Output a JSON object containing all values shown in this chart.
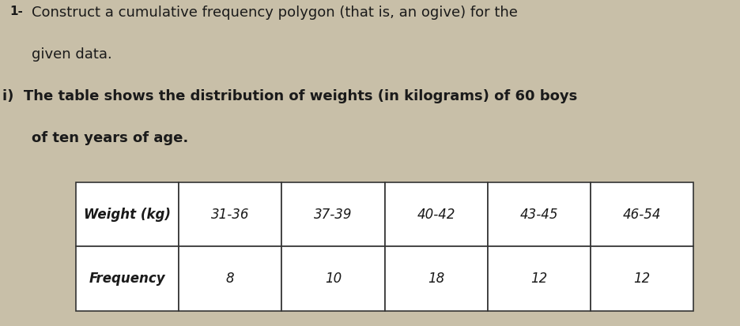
{
  "title_line1": "Construct a cumulative frequency polygon (that is, an ogive) for the",
  "title_line2": "given data.",
  "subtitle": "i)  The table shows the distribution of weights (in kilograms) of 60 boys",
  "subtitle2": "of ten years of age.",
  "table_headers": [
    "Weight (kg)",
    "31-36",
    "37-39",
    "40-42",
    "43-45",
    "46-54"
  ],
  "table_row": [
    "Frequency",
    "8",
    "10",
    "18",
    "12",
    "12"
  ],
  "background_color": "#c8bfa8",
  "text_color": "#1a1a1a",
  "font_size_title": 13,
  "font_size_table": 12
}
